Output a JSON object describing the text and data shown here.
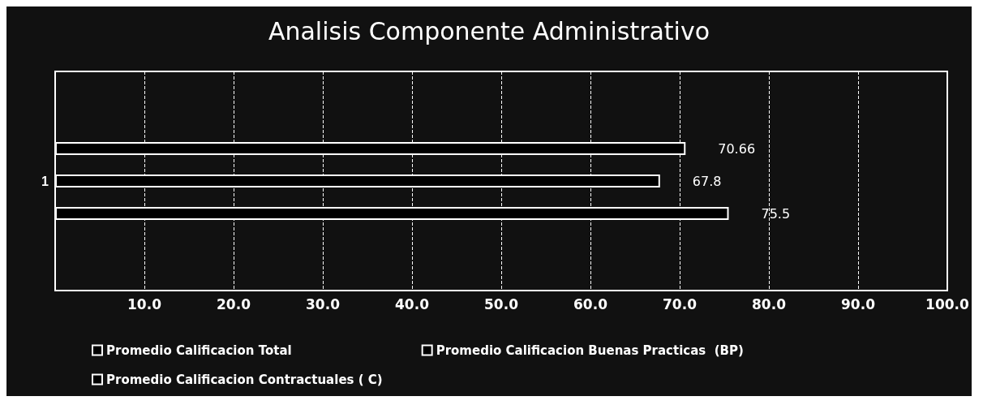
{
  "chart_data": {
    "type": "bar",
    "orientation": "horizontal",
    "title": "Analisis Componente Administrativo",
    "categories": [
      "1"
    ],
    "series": [
      {
        "name": "Promedio Calificacion Total",
        "color": "#000000",
        "values": [
          70.66
        ]
      },
      {
        "name": "Promedio Calificacion Buenas Practicas  (BP)",
        "color": "#000000",
        "values": [
          67.8
        ]
      },
      {
        "name": "Promedio Calificacion Contractuales ( C)",
        "color": "#000000",
        "values": [
          75.5
        ]
      }
    ],
    "xlim": [
      0,
      100
    ],
    "xticks": [
      {
        "value": 10,
        "label": "10.0"
      },
      {
        "value": 20,
        "label": "20.0"
      },
      {
        "value": 30,
        "label": "30.0"
      },
      {
        "value": 40,
        "label": "40.0"
      },
      {
        "value": 50,
        "label": "50.0"
      },
      {
        "value": 60,
        "label": "60.0"
      },
      {
        "value": 70,
        "label": "70.0"
      },
      {
        "value": 80,
        "label": "80.0"
      },
      {
        "value": 90,
        "label": "90.0"
      },
      {
        "value": 100,
        "label": "100.0"
      }
    ],
    "data_labels": true,
    "grid": "x",
    "legend": "bottom"
  }
}
